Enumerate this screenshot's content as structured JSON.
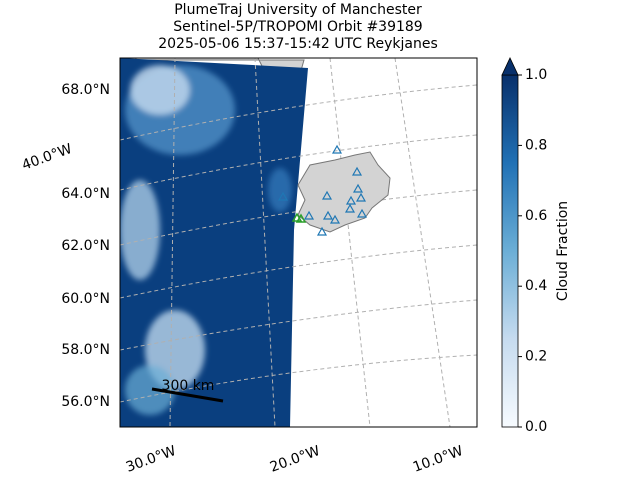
{
  "chart_data": {
    "type": "map",
    "title": [
      "PlumeTraj    University of Manchester",
      "Sentinel-5P/TROPOMI Orbit #39189",
      "2025-05-06   15:37-15:42 UTC   Reykjanes"
    ],
    "lat_labels": [
      "68.0°N",
      "64.0°N",
      "62.0°N",
      "60.0°N",
      "58.0°N",
      "56.0°N"
    ],
    "lon_labels": [
      "40.0°W",
      "30.0°W",
      "20.0°W",
      "10.0°W"
    ],
    "scale_label": "300 km",
    "colorbar": {
      "label": "Cloud Fraction",
      "lim": [
        0,
        1
      ],
      "ticks": [
        {
          "value": 0,
          "label": "0.0"
        },
        {
          "value": 0.2,
          "label": "0.2"
        },
        {
          "value": 0.4,
          "label": "0.4"
        },
        {
          "value": 0.6,
          "label": "0.6"
        },
        {
          "value": 0.8,
          "label": "0.8"
        },
        {
          "value": 1,
          "label": "1.0"
        }
      ],
      "colors": [
        "#f7fbff",
        "#c6dbef",
        "#6baed6",
        "#2171b5",
        "#08306b"
      ]
    }
  }
}
